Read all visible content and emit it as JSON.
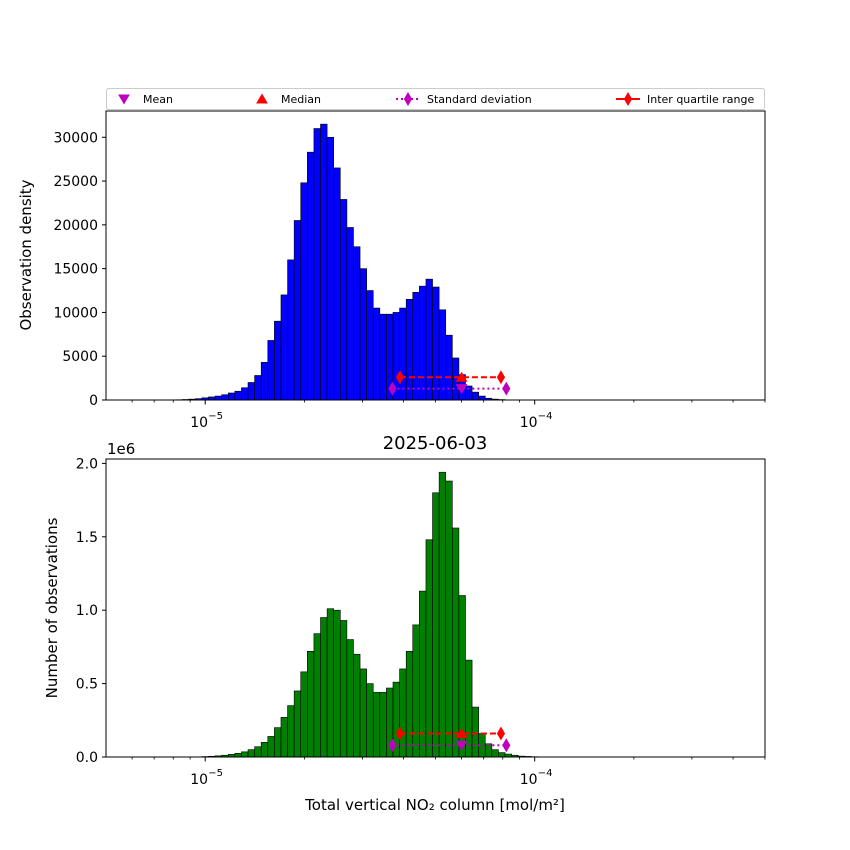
{
  "legend": {
    "items": [
      {
        "label": "Mean",
        "color": "#bf00bf",
        "marker": "triangle-down",
        "line": "none"
      },
      {
        "label": "Median",
        "color": "#ff0000",
        "marker": "triangle-up",
        "line": "none"
      },
      {
        "label": "Standard deviation",
        "color": "#bf00bf",
        "marker": "diamond",
        "line": "dotted"
      },
      {
        "label": "Inter quartile range",
        "color": "#ff0000",
        "marker": "diamond",
        "line": "solid"
      }
    ]
  },
  "chart_data": [
    {
      "type": "bar",
      "title": "",
      "xlabel": "",
      "ylabel": "Observation density",
      "x_scale": "log",
      "xlim": [
        5e-06,
        0.0005
      ],
      "ylim": [
        0,
        33000
      ],
      "yticks": [
        0,
        5000,
        10000,
        15000,
        20000,
        25000,
        30000
      ],
      "xticks": [
        {
          "value": 1e-05,
          "label": "10",
          "exp": "−5"
        },
        {
          "value": 0.0001,
          "label": "10",
          "exp": "−4"
        }
      ],
      "bar_color": "#0000ff",
      "bin_log_start": -5.61,
      "bin_log_step": 0.02,
      "values": [
        0,
        0,
        0,
        0,
        0,
        0,
        0,
        0,
        0,
        0,
        0,
        0,
        0,
        0,
        0,
        0,
        0,
        0,
        0,
        0,
        0,
        0,
        0,
        0,
        0,
        10,
        30,
        60,
        100,
        150,
        250,
        350,
        450,
        600,
        800,
        1000,
        1400,
        2000,
        2800,
        4300,
        6800,
        9000,
        12000,
        16000,
        20500,
        24800,
        28300,
        31000,
        31500,
        30000,
        26500,
        22900,
        19700,
        17500,
        15000,
        12500,
        10500,
        9800,
        9800,
        10000,
        10500,
        11500,
        12300,
        13000,
        13800,
        12900,
        10300,
        7400,
        4800,
        2900,
        1600,
        900,
        450,
        200,
        100,
        50,
        20,
        10,
        0,
        0,
        0,
        0,
        0,
        0,
        0,
        0,
        0,
        0,
        0,
        0,
        0,
        0,
        0,
        0,
        0,
        0,
        0,
        0,
        0,
        0
      ],
      "stats": {
        "mean": {
          "x": 6e-05,
          "y": 1300
        },
        "median": {
          "x": 6e-05,
          "y": 2600
        },
        "std": {
          "x": [
            3.7e-05,
            8.2e-05
          ],
          "y": 1300
        },
        "iqr": {
          "x": [
            3.9e-05,
            7.9e-05
          ],
          "y": 2600
        }
      }
    },
    {
      "type": "bar",
      "title": "2025-06-03",
      "xlabel": "Total vertical NO₂ column [mol/m²]",
      "ylabel": "Number of observations",
      "y_offset_label": "1e6",
      "x_scale": "log",
      "xlim": [
        5e-06,
        0.0005
      ],
      "ylim": [
        0,
        2.03
      ],
      "yticks": [
        0,
        0.5,
        1.0,
        1.5,
        2.0
      ],
      "ytick_labels": [
        "0.0",
        "0.5",
        "1.0",
        "1.5",
        "2.0"
      ],
      "xticks": [
        {
          "value": 1e-05,
          "label": "10",
          "exp": "−5"
        },
        {
          "value": 0.0001,
          "label": "10",
          "exp": "−4"
        }
      ],
      "bar_color": "#008000",
      "bin_log_start": -5.61,
      "bin_log_step": 0.02,
      "values": [
        0,
        0,
        0,
        0,
        0,
        0,
        0,
        0,
        0,
        0,
        0,
        0,
        0,
        0,
        0,
        0,
        0,
        0,
        0,
        0,
        0,
        0,
        0,
        0,
        0,
        0,
        0,
        0,
        0,
        0,
        0.003,
        0.005,
        0.008,
        0.012,
        0.018,
        0.025,
        0.035,
        0.05,
        0.07,
        0.1,
        0.14,
        0.2,
        0.27,
        0.35,
        0.45,
        0.58,
        0.72,
        0.84,
        0.95,
        1.01,
        1.0,
        0.93,
        0.8,
        0.7,
        0.6,
        0.5,
        0.44,
        0.44,
        0.47,
        0.51,
        0.6,
        0.72,
        0.9,
        1.13,
        1.48,
        1.8,
        1.94,
        1.88,
        1.56,
        1.1,
        0.66,
        0.34,
        0.16,
        0.09,
        0.05,
        0.03,
        0.02,
        0.012,
        0.006,
        0.004,
        0.002,
        0,
        0,
        0,
        0,
        0,
        0,
        0,
        0,
        0,
        0,
        0,
        0,
        0,
        0,
        0,
        0,
        0,
        0,
        0
      ],
      "stats": {
        "mean": {
          "x": 6e-05,
          "y": 0.08
        },
        "median": {
          "x": 6e-05,
          "y": 0.16
        },
        "std": {
          "x": [
            3.7e-05,
            8.2e-05
          ],
          "y": 0.08
        },
        "iqr": {
          "x": [
            3.9e-05,
            7.9e-05
          ],
          "y": 0.16
        }
      }
    }
  ]
}
